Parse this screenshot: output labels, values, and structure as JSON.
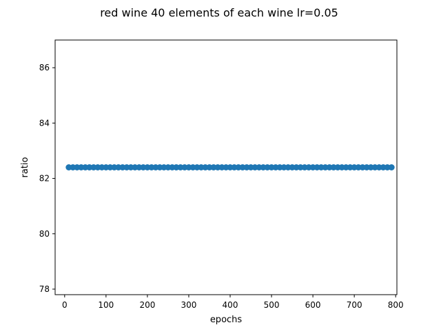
{
  "chart_data": {
    "type": "scatter",
    "title": "red wine 40 elements of each wine lr=0.05",
    "xlabel": "epochs",
    "ylabel": "ratio",
    "xlim": [
      -23,
      803
    ],
    "ylim": [
      77.8,
      87.0
    ],
    "xticks": [
      0,
      100,
      200,
      300,
      400,
      500,
      600,
      700,
      800
    ],
    "yticks": [
      78,
      80,
      82,
      84,
      86
    ],
    "grid": false,
    "legend": false,
    "marker_color": "#1f77b4",
    "series": [
      {
        "x": [
          10,
          20,
          30,
          40,
          50,
          60,
          70,
          80,
          90,
          100,
          110,
          120,
          130,
          140,
          150,
          160,
          170,
          180,
          190,
          200,
          210,
          220,
          230,
          240,
          250,
          260,
          270,
          280,
          290,
          300,
          310,
          320,
          330,
          340,
          350,
          360,
          370,
          380,
          390,
          400,
          410,
          420,
          430,
          440,
          450,
          460,
          470,
          480,
          490,
          500,
          510,
          520,
          530,
          540,
          550,
          560,
          570,
          580,
          590,
          600,
          610,
          620,
          630,
          640,
          650,
          660,
          670,
          680,
          690,
          700,
          710,
          720,
          730,
          740,
          750,
          760,
          770,
          780,
          790
        ],
        "y": [
          82.4,
          82.4,
          82.4,
          82.4,
          82.4,
          82.4,
          82.4,
          82.4,
          82.4,
          82.4,
          82.4,
          82.4,
          82.4,
          82.4,
          82.4,
          82.4,
          82.4,
          82.4,
          82.4,
          82.4,
          82.4,
          82.4,
          82.4,
          82.4,
          82.4,
          82.4,
          82.4,
          82.4,
          82.4,
          82.4,
          82.4,
          82.4,
          82.4,
          82.4,
          82.4,
          82.4,
          82.4,
          82.4,
          82.4,
          82.4,
          82.4,
          82.4,
          82.4,
          82.4,
          82.4,
          82.4,
          82.4,
          82.4,
          82.4,
          82.4,
          82.4,
          82.4,
          82.4,
          82.4,
          82.4,
          82.4,
          82.4,
          82.4,
          82.4,
          82.4,
          82.4,
          82.4,
          82.4,
          82.4,
          82.4,
          82.4,
          82.4,
          82.4,
          82.4,
          82.4,
          82.4,
          82.4,
          82.4,
          82.4,
          82.4,
          82.4,
          82.4,
          82.4,
          82.4
        ]
      }
    ]
  }
}
